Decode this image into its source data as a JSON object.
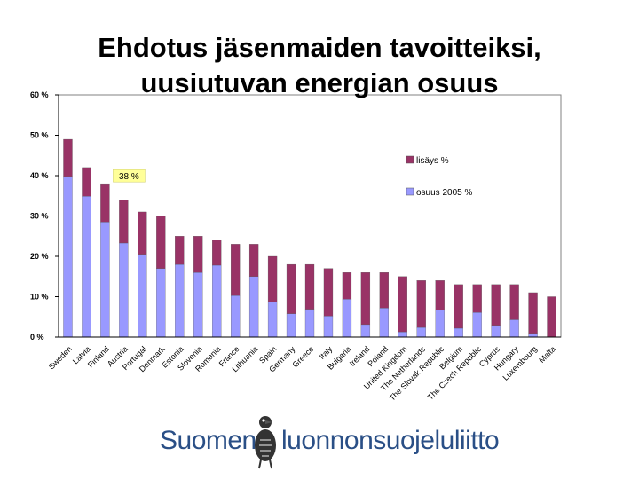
{
  "title_line1": "Ehdotus jäsenmaiden tavoitteiksi,",
  "title_line2": "uusiutuvan energian osuus",
  "chart_data": {
    "type": "bar",
    "stacked": true,
    "categories": [
      "Sweden",
      "Latvia",
      "Finland",
      "Austria",
      "Portugal",
      "Denmark",
      "Estonia",
      "Slovenia",
      "Romania",
      "France",
      "Lithuania",
      "Spain",
      "Germany",
      "Greece",
      "Italy",
      "Bulgaria",
      "Ireland",
      "Poland",
      "United Kingdom",
      "The Netherlands",
      "The Slovak Republic",
      "Belgium",
      "The Czech Republic",
      "Cyprus",
      "Hungary",
      "Luxembourg",
      "Malta"
    ],
    "series": [
      {
        "name": "osuus 2005 %",
        "color": "#9999ff",
        "values": [
          39.8,
          34.9,
          28.5,
          23.3,
          20.5,
          17.0,
          18.0,
          16.0,
          17.8,
          10.3,
          15.0,
          8.7,
          5.8,
          6.9,
          5.2,
          9.4,
          3.1,
          7.2,
          1.3,
          2.4,
          6.7,
          2.2,
          6.1,
          2.9,
          4.3,
          0.9,
          0.0
        ]
      },
      {
        "name": "lisäys %",
        "color": "#993366",
        "values": [
          9.2,
          7.1,
          9.5,
          10.7,
          10.5,
          13.0,
          7.0,
          9.0,
          6.2,
          12.7,
          8.0,
          11.3,
          12.2,
          11.1,
          11.8,
          6.6,
          12.9,
          8.8,
          13.7,
          11.6,
          7.3,
          10.8,
          6.9,
          10.1,
          8.7,
          10.1,
          10.0
        ]
      }
    ],
    "ylim": [
      0,
      60
    ],
    "yticks": [
      "0 %",
      "10 %",
      "20 %",
      "30 %",
      "40 %",
      "50 %",
      "60 %"
    ],
    "annotation": "38 %",
    "legend_position": "top-right"
  },
  "logo": {
    "word1": "Suomen",
    "word2": "luonnonsuojeluliitto",
    "color": "#2a4f86"
  }
}
